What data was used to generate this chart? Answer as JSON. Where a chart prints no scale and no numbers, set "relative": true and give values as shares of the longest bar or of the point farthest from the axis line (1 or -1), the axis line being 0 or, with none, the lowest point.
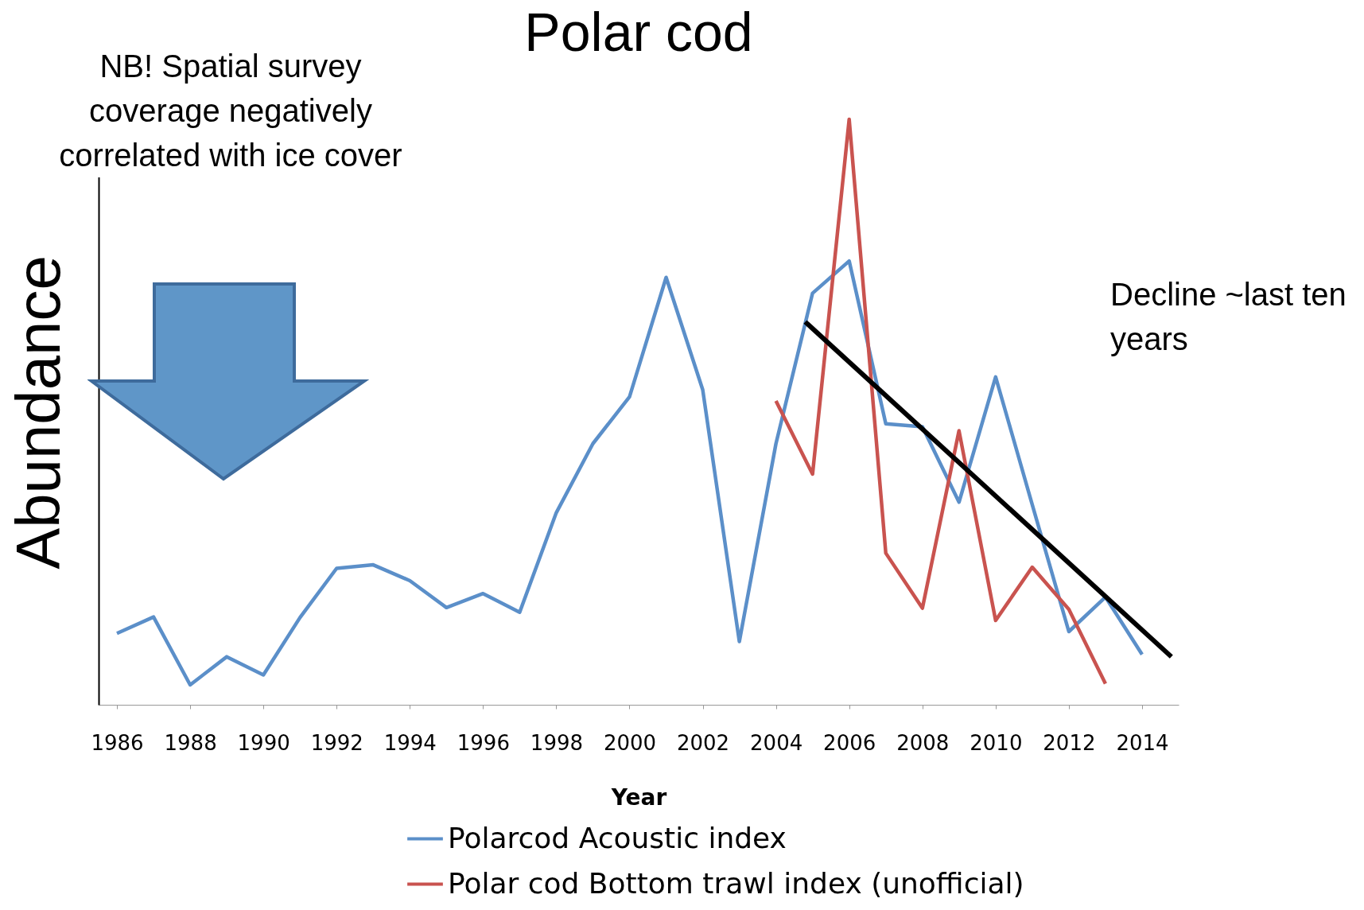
{
  "chart_data": {
    "type": "line",
    "title": "Polar cod",
    "xlabel": "Year",
    "ylabel": "Abundance",
    "relative": true,
    "annotations": [
      "NB! Spatial survey coverage negatively correlated with ice cover",
      "Decline ~last ten years"
    ],
    "x": [
      1986,
      1987,
      1988,
      1989,
      1990,
      1991,
      1992,
      1993,
      1994,
      1995,
      1996,
      1997,
      1998,
      1999,
      2000,
      2001,
      2002,
      2003,
      2004,
      2005,
      2006,
      2007,
      2008,
      2009,
      2010,
      2011,
      2012,
      2013,
      2014
    ],
    "xlim": [
      1985.5,
      2015
    ],
    "xticks": [
      1986,
      1988,
      1990,
      1992,
      1994,
      1996,
      1998,
      2000,
      2002,
      2004,
      2006,
      2008,
      2010,
      2012,
      2014
    ],
    "legend": "bottom",
    "series": [
      {
        "name": "Polarcod Acoustic index",
        "color": "#5b8fc9",
        "values": [
          0.122,
          0.15,
          0.034,
          0.082,
          0.051,
          0.149,
          0.233,
          0.239,
          0.212,
          0.166,
          0.19,
          0.158,
          0.328,
          0.446,
          0.526,
          0.73,
          0.538,
          0.108,
          0.446,
          0.703,
          0.758,
          0.48,
          0.475,
          0.346,
          0.56,
          0.342,
          0.125,
          0.184,
          0.086
        ]
      },
      {
        "name": "Polar cod Bottom trawl index (unofficial)",
        "color": "#c9534f",
        "x": [
          2004,
          2005,
          2006,
          2007,
          2008,
          2009,
          2010,
          2011,
          2012,
          2013
        ],
        "values": [
          0.519,
          0.394,
          1,
          0.259,
          0.165,
          0.468,
          0.144,
          0.235,
          0.163,
          0.036
        ]
      },
      {
        "type": "line",
        "color": "#000000",
        "x": [
          2004.8,
          2014.8
        ],
        "values": [
          0.654,
          0.082
        ]
      }
    ]
  }
}
